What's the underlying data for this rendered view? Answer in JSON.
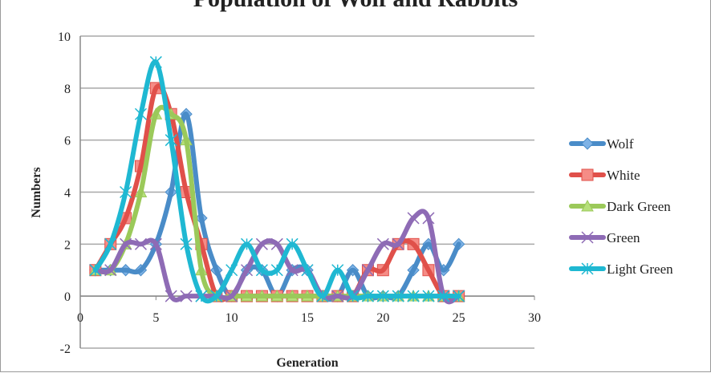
{
  "chart_data": {
    "type": "line",
    "title": "Population of Wolf and Rabbits",
    "xlabel": "Generation",
    "ylabel": "Numbers",
    "xlim": [
      0,
      30
    ],
    "ylim": [
      -2,
      10
    ],
    "xticks": [
      0,
      5,
      10,
      15,
      20,
      25,
      30
    ],
    "yticks": [
      -2,
      0,
      2,
      4,
      6,
      8,
      10
    ],
    "grid": "horizontal",
    "legend": "right",
    "smoothed": true,
    "x": [
      1,
      2,
      3,
      4,
      5,
      6,
      7,
      8,
      9,
      10,
      11,
      12,
      13,
      14,
      15,
      16,
      17,
      18,
      19,
      20,
      21,
      22,
      23,
      24,
      25
    ],
    "series": [
      {
        "name": "Wolf",
        "color": "#4a8cc8",
        "marker": "diamond",
        "values": [
          1,
          1,
          1,
          1,
          2,
          4,
          7,
          3,
          1,
          0,
          1,
          1,
          0,
          1,
          1,
          0,
          0,
          1,
          0,
          0,
          0,
          1,
          2,
          1,
          2
        ]
      },
      {
        "name": "White",
        "color": "#e0504a",
        "marker": "square",
        "values": [
          1,
          2,
          3,
          5,
          8,
          7,
          4,
          2,
          0,
          0,
          0,
          0,
          0,
          0,
          0,
          0,
          0,
          0,
          1,
          1,
          2,
          2,
          1,
          0,
          0
        ]
      },
      {
        "name": "Dark Green",
        "color": "#9bc95a",
        "marker": "triangle",
        "values": [
          1,
          1,
          2,
          4,
          7,
          7,
          6,
          1,
          0,
          0,
          0,
          0,
          0,
          0,
          0,
          0,
          0,
          0,
          0,
          0,
          0,
          0,
          0,
          0,
          0
        ]
      },
      {
        "name": "Green",
        "color": "#8e6bb5",
        "marker": "x",
        "values": [
          1,
          1,
          2,
          2,
          2,
          0,
          0,
          0,
          0,
          0,
          1,
          2,
          2,
          1,
          1,
          0,
          0,
          0,
          1,
          2,
          2,
          3,
          3,
          0,
          0
        ]
      },
      {
        "name": "Light Green",
        "color": "#1fb8d2",
        "marker": "star",
        "values": [
          1,
          2,
          4,
          7,
          9,
          6,
          2,
          0,
          0,
          1,
          2,
          1,
          1,
          2,
          1,
          0,
          1,
          0,
          0,
          0,
          0,
          0,
          0,
          0,
          0
        ]
      }
    ]
  }
}
